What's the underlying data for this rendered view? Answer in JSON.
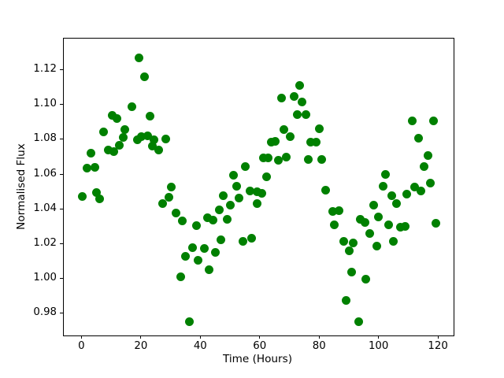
{
  "chart_data": {
    "type": "scatter",
    "title": "",
    "xlabel": "Time (Hours)",
    "ylabel": "Normalised Flux",
    "marker_color": "#008000",
    "marker_diameter_px": 11,
    "grid": false,
    "legend": null,
    "xlim": [
      -6.2,
      125.0
    ],
    "ylim": [
      0.9677,
      1.1383
    ],
    "xticks": [
      0,
      20,
      40,
      60,
      80,
      100,
      120
    ],
    "yticks": [
      0.98,
      1.0,
      1.02,
      1.04,
      1.06,
      1.08,
      1.1,
      1.12
    ],
    "x": [
      19.1,
      21.1,
      16.8,
      10.1,
      11.7,
      22.9,
      7.1,
      14.4,
      13.9,
      12.5,
      8.8,
      10.7,
      18.5,
      20.0,
      21.9,
      24.2,
      23.5,
      25.7,
      28.1,
      2.9,
      1.5,
      4.2,
      30.1,
      73.2,
      67.1,
      71.3,
      74.0,
      72.4,
      75.2,
      67.8,
      69.9,
      79.7,
      63.6,
      65.0,
      77.0,
      78.7,
      60.9,
      62.7,
      66.0,
      68.8,
      76.1,
      80.5,
      54.9,
      51.0,
      62.0,
      51.9,
      111.2,
      118.2,
      113.2,
      116.3,
      115.0,
      102.0,
      101.3,
      112.0,
      117.1,
      0.1,
      4.7,
      5.9,
      27.1,
      29.2,
      31.5,
      33.8,
      38.5,
      37.2,
      34.7,
      38.9,
      33.2,
      36.1,
      56.5,
      59.0,
      60.4,
      47.6,
      52.8,
      59.0,
      49.8,
      46.1,
      42.3,
      43.9,
      48.9,
      46.8,
      54.2,
      57.0,
      41.1,
      44.9,
      42.6,
      81.8,
      104.2,
      105.8,
      109.1,
      114.0,
      84.3,
      86.4,
      84.9,
      93.7,
      95.1,
      98.1,
      99.6,
      103.2,
      107.1,
      108.6,
      119.0,
      96.8,
      104.7,
      88.0,
      91.3,
      89.8,
      99.2,
      90.8,
      95.5,
      88.9,
      93.0
    ],
    "y": [
      1.127,
      1.1163,
      1.0992,
      1.0943,
      1.0922,
      1.0936,
      1.0847,
      1.0862,
      1.0816,
      1.0772,
      1.0744,
      1.0732,
      1.08,
      1.082,
      1.0823,
      1.0803,
      1.0765,
      1.0743,
      1.0808,
      1.0725,
      1.0637,
      1.0645,
      1.0529,
      1.1112,
      1.104,
      1.1049,
      1.1017,
      1.0946,
      1.0946,
      1.0862,
      1.082,
      1.0863,
      1.079,
      1.0792,
      1.079,
      1.079,
      1.0699,
      1.0696,
      1.0684,
      1.0704,
      1.0688,
      1.0687,
      1.0646,
      1.06,
      1.0591,
      1.0533,
      1.0912,
      1.0912,
      1.0809,
      1.071,
      1.0646,
      1.0601,
      1.0533,
      1.0529,
      1.0554,
      1.0476,
      1.05,
      1.0462,
      1.0433,
      1.047,
      1.038,
      1.0335,
      1.0309,
      1.018,
      1.0134,
      1.0109,
      1.0015,
      0.9755,
      1.0508,
      1.0505,
      1.0496,
      1.0478,
      1.0466,
      1.0435,
      1.0425,
      1.0399,
      1.0353,
      1.0339,
      1.0345,
      1.0225,
      1.0219,
      1.0234,
      1.0176,
      1.0154,
      1.0053,
      1.0511,
      1.0481,
      1.0435,
      1.0488,
      1.0506,
      1.0388,
      1.0395,
      1.0315,
      1.0345,
      1.0327,
      1.0428,
      1.036,
      1.0312,
      1.0297,
      1.0304,
      1.0322,
      1.0262,
      1.0219,
      1.0219,
      1.021,
      1.0162,
      1.0191,
      1.0041,
      0.9999,
      0.9879,
      0.9758
    ]
  }
}
